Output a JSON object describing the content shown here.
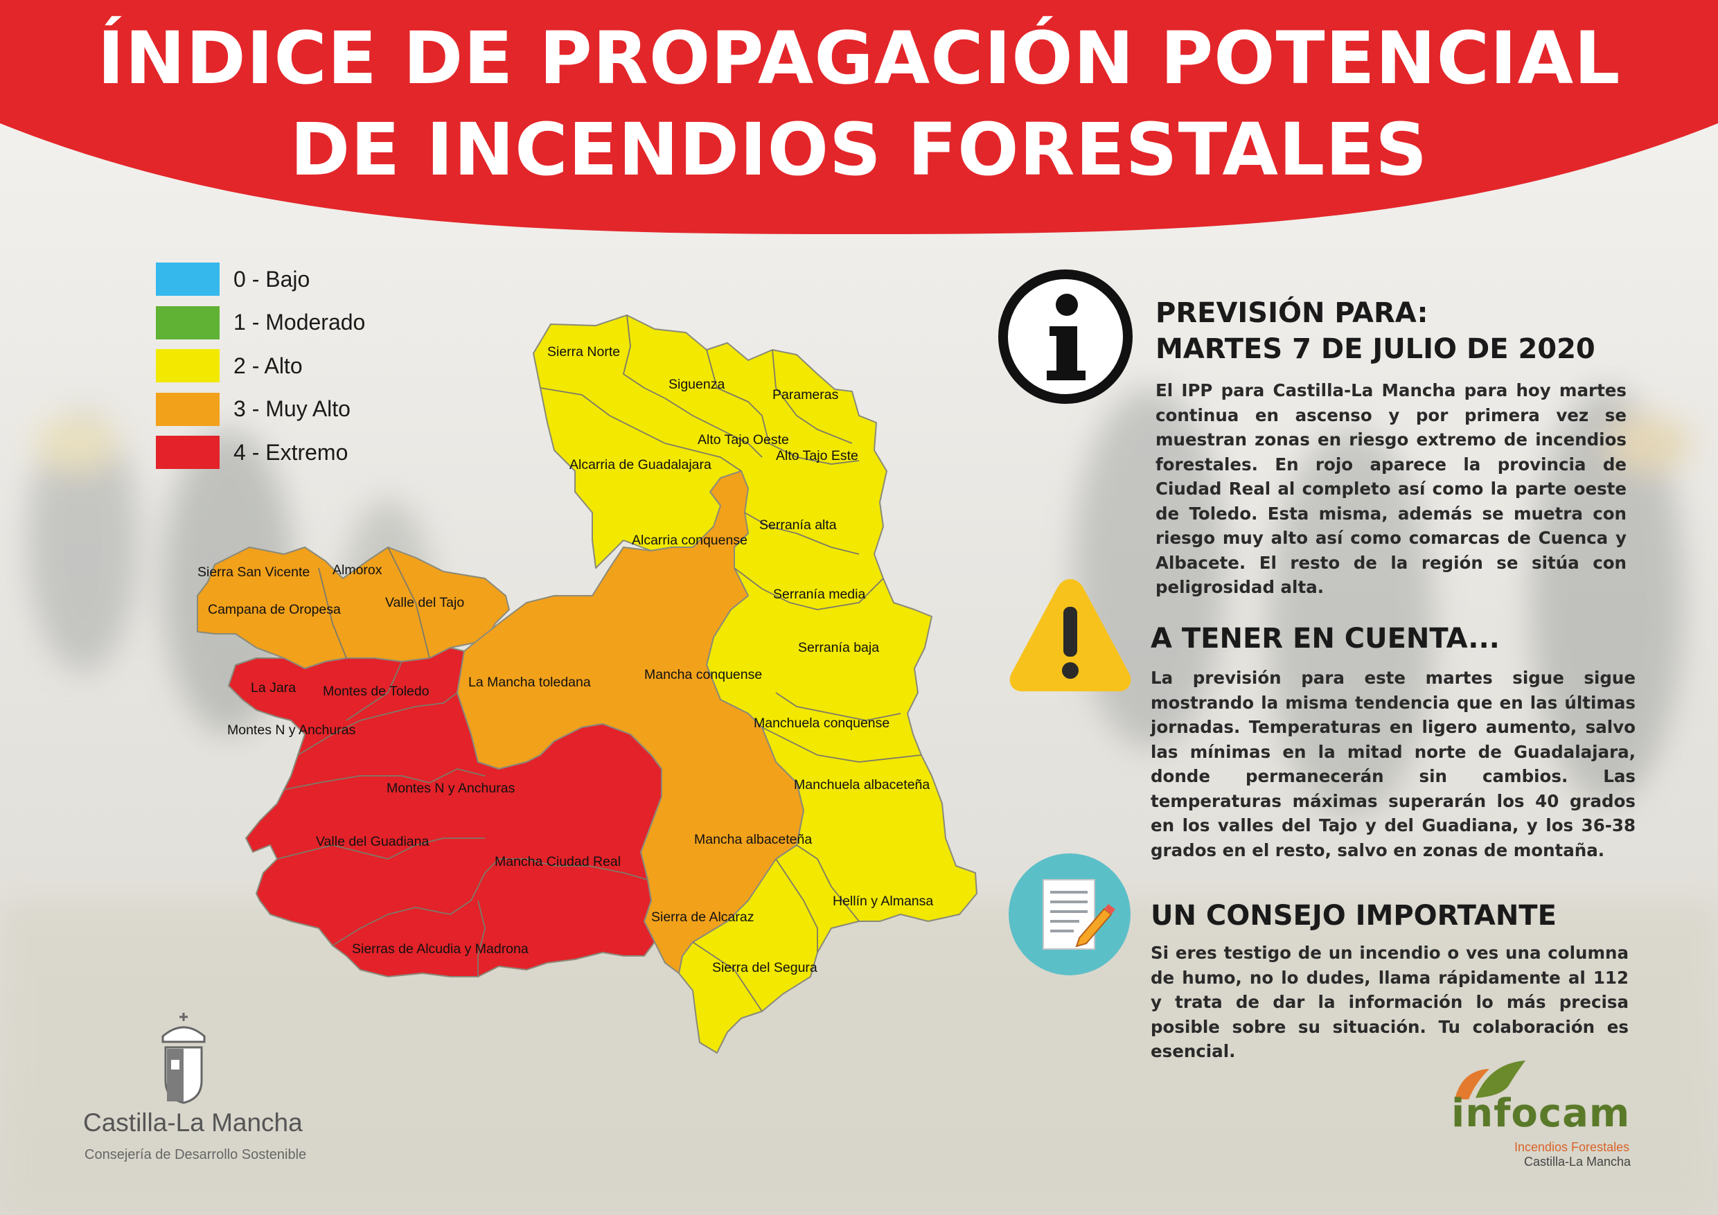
{
  "header": {
    "title_line1": "ÍNDICE DE PROPAGACIÓN POTENCIAL",
    "title_line2": "DE INCENDIOS FORESTALES"
  },
  "colors": {
    "banner": "#e3262a",
    "bajo": "#35b8ec",
    "moderado": "#5fb233",
    "alto": "#f2e800",
    "muy_alto": "#f2a11b",
    "extremo": "#e32229"
  },
  "legend": [
    {
      "label": "0 - Bajo",
      "color": "#35b8ec"
    },
    {
      "label": "1 - Moderado",
      "color": "#5fb233"
    },
    {
      "label": "2 - Alto",
      "color": "#f2e800"
    },
    {
      "label": "3 - Muy Alto",
      "color": "#f2a11b"
    },
    {
      "label": "4 - Extremo",
      "color": "#e32229"
    }
  ],
  "map": {
    "regions": [
      {
        "name": "Sierra Norte",
        "level": 2
      },
      {
        "name": "Siguenza",
        "level": 2
      },
      {
        "name": "Parameras",
        "level": 2
      },
      {
        "name": "Alto Tajo Oeste",
        "level": 2
      },
      {
        "name": "Alto Tajo Este",
        "level": 2
      },
      {
        "name": "Alcarria de Guadalajara",
        "level": 2
      },
      {
        "name": "Alcarria conquense",
        "level": 3
      },
      {
        "name": "Serranía alta",
        "level": 2
      },
      {
        "name": "Sierra San Vicente",
        "level": 3
      },
      {
        "name": "Almorox",
        "level": 3
      },
      {
        "name": "Campana de Oropesa",
        "level": 3
      },
      {
        "name": "Valle del Tajo",
        "level": 3
      },
      {
        "name": "Serranía media",
        "level": 2
      },
      {
        "name": "Serranía baja",
        "level": 2
      },
      {
        "name": "La Jara",
        "level": 4
      },
      {
        "name": "Montes de Toledo",
        "level": 4
      },
      {
        "name": "La Mancha toledana",
        "level": 3
      },
      {
        "name": "Mancha conquense",
        "level": 3
      },
      {
        "name": "Montes N y Anchuras",
        "level": 4
      },
      {
        "name": "Manchuela conquense",
        "level": 2
      },
      {
        "name": "Montes N y Anchuras",
        "level": 4
      },
      {
        "name": "Manchuela albaceteña",
        "level": 2
      },
      {
        "name": "Valle del Guadiana",
        "level": 4
      },
      {
        "name": "Mancha albaceteña",
        "level": 3
      },
      {
        "name": "Mancha Ciudad Real",
        "level": 4
      },
      {
        "name": "Hellín y Almansa",
        "level": 2
      },
      {
        "name": "Sierra de Alcaraz",
        "level": 3
      },
      {
        "name": "Sierras de Alcudia y Madrona",
        "level": 4
      },
      {
        "name": "Sierra del Segura",
        "level": 2
      }
    ]
  },
  "prevision": {
    "icon": "info-icon",
    "title_line1": "PREVISIÓN PARA:",
    "title_line2": "MARTES 7 DE JULIO DE 2020",
    "text": "El IPP para Castilla-La Mancha para hoy martes continua en ascenso y por primera vez se muestran zonas en riesgo extremo de incendios forestales. En rojo aparece la provincia de Ciudad Real al completo así como la parte oeste de Toledo. Esta misma, además se muetra con riesgo muy alto así como comarcas de Cuenca y Albacete. El resto de la región se sitúa con peligrosidad alta."
  },
  "aviso": {
    "icon": "warning-icon",
    "title": "A TENER EN CUENTA...",
    "text": "La previsión para este martes sigue sigue mostrando la misma tendencia que en las últimas jornadas. Temperaturas en ligero aumento, salvo las mínimas en la mitad norte de Guadalajara, donde permanecerán sin cambios. Las temperaturas máximas superarán los 40 grados en los valles del Tajo y del Guadiana, y los 36-38 grados en el resto, salvo en zonas de montaña."
  },
  "consejo": {
    "icon": "document-pencil-icon",
    "title": "UN CONSEJO IMPORTANTE",
    "text": "Si eres testigo de un incendio o ves una columna de humo, no lo dudes, llama rápidamente al 112 y trata de dar la información lo más precisa posible sobre su situación. Tu colaboración es esencial."
  },
  "footer": {
    "clm_logo_icon": "castilla-la-mancha-coat-of-arms",
    "clm_name": "Castilla-La Mancha",
    "clm_sub": "Consejería de Desarrollo Sostenible",
    "infocam_logo_icon": "infocam-leaf-logo",
    "infocam_name": "infocam",
    "infocam_sub1": "Incendios Forestales",
    "infocam_sub2": "Castilla-La Mancha"
  }
}
